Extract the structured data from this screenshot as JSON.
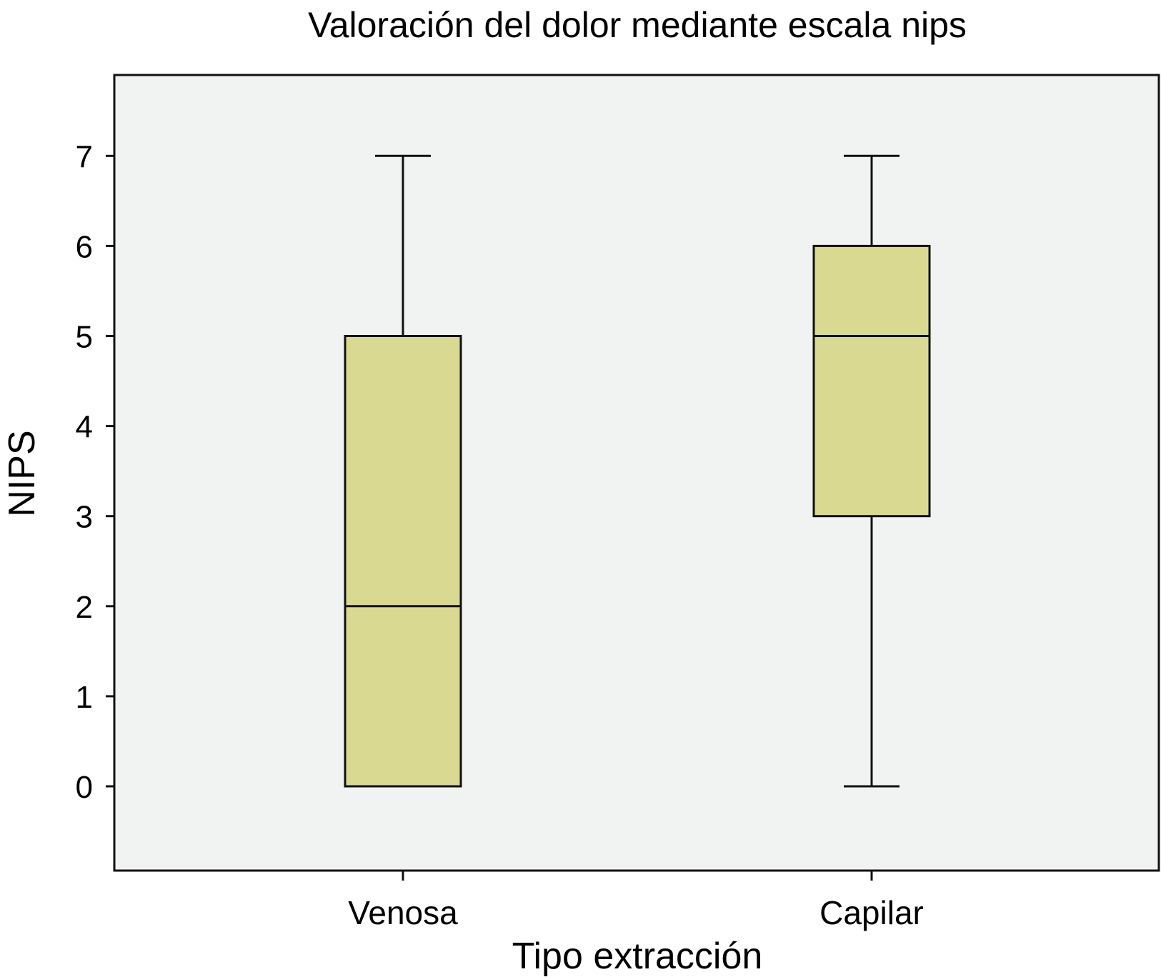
{
  "chart_data": {
    "type": "boxplot",
    "title": "Valoración del dolor mediante escala nips",
    "xlabel": "Tipo extracción",
    "ylabel": "NIPS",
    "categories": [
      "Venosa",
      "Capilar"
    ],
    "boxes": [
      {
        "category": "Venosa",
        "whisker_low": 0,
        "q1": 0,
        "median": 2,
        "q3": 5,
        "whisker_high": 7
      },
      {
        "category": "Capilar",
        "whisker_low": 0,
        "q1": 3,
        "median": 5,
        "q3": 6,
        "whisker_high": 7
      }
    ],
    "yticks": [
      0,
      1,
      2,
      3,
      4,
      5,
      6,
      7
    ],
    "ylim": [
      -0.93,
      7.93
    ],
    "grid": false,
    "colors": {
      "box_fill": "#d9d991",
      "plot_background": "#f0f3f2",
      "line": "#111111"
    }
  }
}
